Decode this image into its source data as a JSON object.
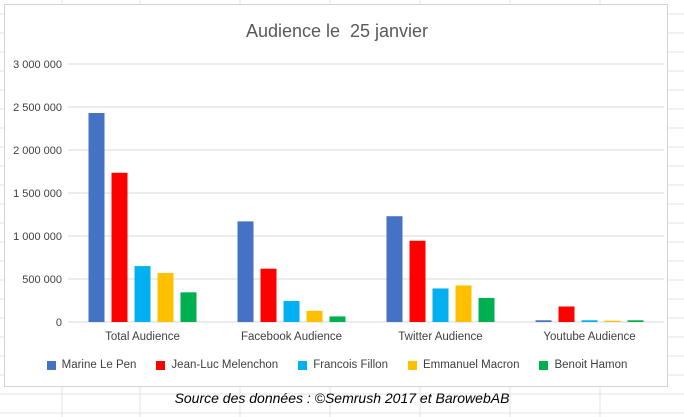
{
  "source_note": "Source des données : ©Semrush 2017 et BarowebAB",
  "chart_data": {
    "type": "bar",
    "title": "Audience le  25 janvier",
    "xlabel": "",
    "ylabel": "",
    "ylim": [
      0,
      3000000
    ],
    "ytick_values": [
      0,
      500000,
      1000000,
      1500000,
      2000000,
      2500000,
      3000000
    ],
    "ytick_labels": [
      "0",
      "500 000",
      "1 000 000",
      "1 500 000",
      "2 000 000",
      "2 500 000",
      "3 000 000"
    ],
    "grid": true,
    "legend_position": "bottom",
    "categories": [
      "Total Audience",
      "Facebook Audience",
      "Twitter Audience",
      "Youtube Audience"
    ],
    "series": [
      {
        "name": "Marine Le Pen",
        "color": "#4472c4",
        "values": [
          2430000,
          1170000,
          1230000,
          20000
        ]
      },
      {
        "name": "Jean-Luc Melenchon",
        "color": "#ff0000",
        "values": [
          1735000,
          620000,
          945000,
          180000
        ]
      },
      {
        "name": "Francois Fillon",
        "color": "#00b0f0",
        "values": [
          650000,
          245000,
          390000,
          20000
        ]
      },
      {
        "name": "Emmanuel Macron",
        "color": "#ffc000",
        "values": [
          570000,
          130000,
          425000,
          15000
        ]
      },
      {
        "name": "Benoit Hamon",
        "color": "#00b050",
        "values": [
          345000,
          65000,
          280000,
          20000
        ]
      }
    ]
  }
}
